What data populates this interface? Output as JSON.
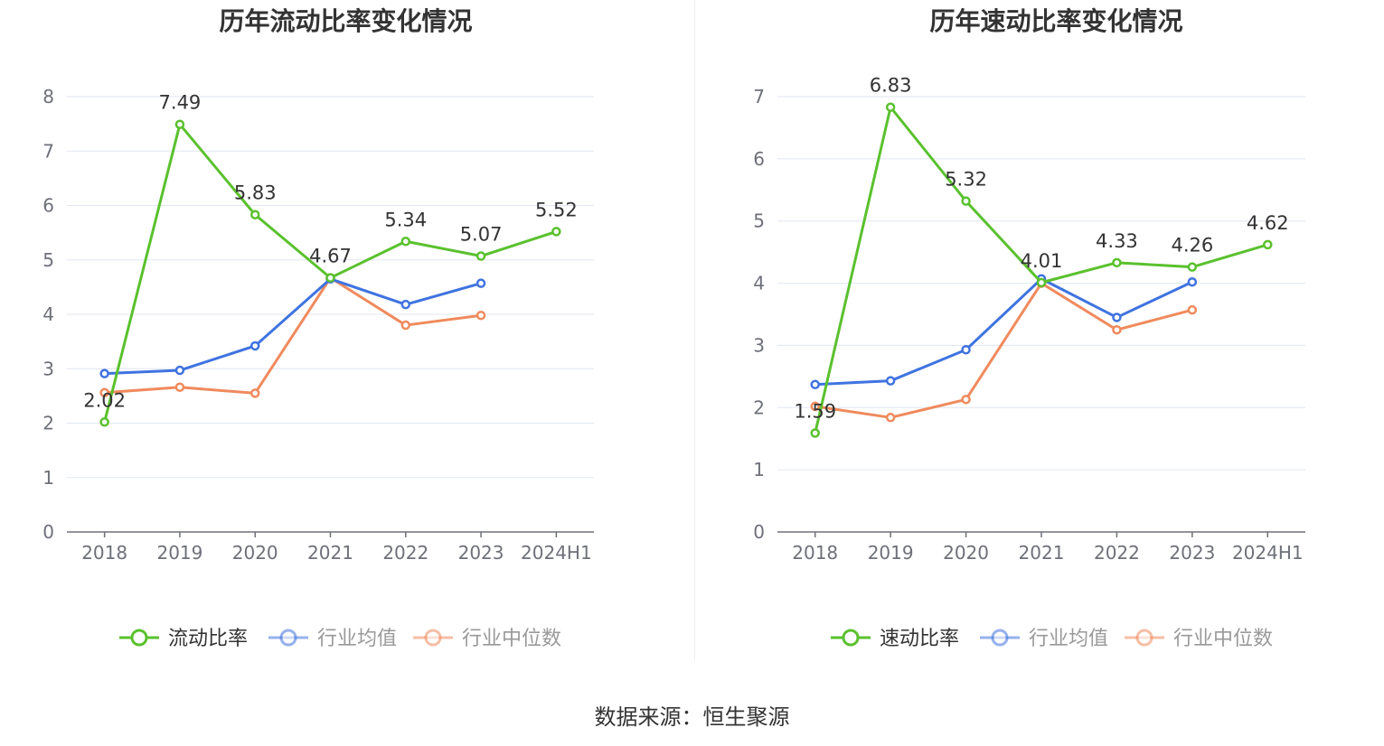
{
  "colors": {
    "main": "#5ac12e",
    "avg": "#3f73e0",
    "median": "#f08a5d",
    "grid": "#e0e6f1",
    "axis": "#6e7079"
  },
  "chart_data": [
    {
      "type": "line",
      "title": "历年流动比率变化情况",
      "categories": [
        "2018",
        "2019",
        "2020",
        "2021",
        "2022",
        "2023",
        "2024H1"
      ],
      "ylim": [
        0,
        8
      ],
      "yticks": [
        "0",
        "1",
        "2",
        "3",
        "4",
        "5",
        "6",
        "7",
        "8"
      ],
      "grid": true,
      "legend_position": "bottom",
      "series": [
        {
          "name": "流动比率",
          "values": [
            2.02,
            7.49,
            5.83,
            4.67,
            5.34,
            5.07,
            5.52
          ],
          "labels": [
            "2.02",
            "7.49",
            "5.83",
            "4.67",
            "5.34",
            "5.07",
            "5.52"
          ]
        },
        {
          "name": "行业均值",
          "values": [
            2.91,
            2.97,
            3.42,
            4.65,
            4.18,
            4.57,
            null
          ]
        },
        {
          "name": "行业中位数",
          "values": [
            2.56,
            2.66,
            2.55,
            4.67,
            3.8,
            3.98,
            null
          ]
        }
      ]
    },
    {
      "type": "line",
      "title": "历年速动比率变化情况",
      "categories": [
        "2018",
        "2019",
        "2020",
        "2021",
        "2022",
        "2023",
        "2024H1"
      ],
      "ylim": [
        0,
        7
      ],
      "yticks": [
        "0",
        "1",
        "2",
        "3",
        "4",
        "5",
        "6",
        "7"
      ],
      "grid": true,
      "legend_position": "bottom",
      "series": [
        {
          "name": "速动比率",
          "values": [
            1.59,
            6.83,
            5.32,
            4.01,
            4.33,
            4.26,
            4.62
          ],
          "labels": [
            "1.59",
            "6.83",
            "5.32",
            "4.01",
            "4.33",
            "4.26",
            "4.62"
          ]
        },
        {
          "name": "行业均值",
          "values": [
            2.37,
            2.43,
            2.93,
            4.07,
            3.45,
            4.02,
            null
          ]
        },
        {
          "name": "行业中位数",
          "values": [
            2.02,
            1.84,
            2.13,
            4.0,
            3.25,
            3.57,
            null
          ]
        }
      ]
    }
  ],
  "footer": {
    "source": "数据来源：恒生聚源"
  }
}
